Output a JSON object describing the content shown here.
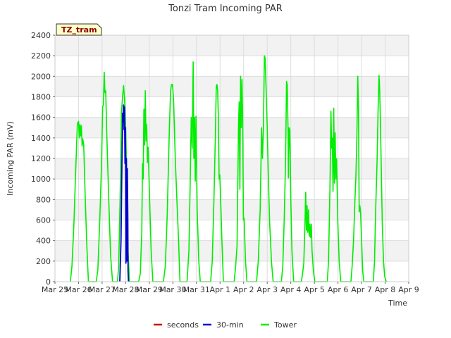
{
  "chart_data": {
    "type": "line",
    "title": "Tonzi Tram Incoming PAR",
    "xlabel": "Time",
    "ylabel": "Incoming PAR (mV)",
    "ylim": [
      0,
      2400
    ],
    "yticks": [
      0,
      200,
      400,
      600,
      800,
      1000,
      1200,
      1400,
      1600,
      1800,
      2000,
      2200,
      2400
    ],
    "xlim": [
      0,
      15
    ],
    "xticks": [
      0,
      1,
      2,
      3,
      4,
      5,
      6,
      7,
      8,
      9,
      10,
      11,
      12,
      13,
      14,
      15
    ],
    "xtick_labels": [
      "Mar 25",
      "Mar 26",
      "Mar 27",
      "Mar 28",
      "Mar 29",
      "Mar 30",
      "Mar 31",
      "Apr 1",
      "Apr 2",
      "Apr 3",
      "Apr 4",
      "Apr 5",
      "Apr 6",
      "Apr 7",
      "Apr 8",
      "Apr 9"
    ],
    "grid": true,
    "tag": "TZ_tram",
    "legend_position": "bottom",
    "series": [
      {
        "name": "seconds",
        "color": "#cc0000",
        "points": []
      },
      {
        "name": "30-min",
        "color": "#0000cc",
        "points": [
          [
            2.75,
            0
          ],
          [
            2.8,
            400
          ],
          [
            2.84,
            1150
          ],
          [
            2.87,
            1640
          ],
          [
            2.89,
            1560
          ],
          [
            2.91,
            1720
          ],
          [
            2.93,
            1480
          ],
          [
            2.95,
            1700
          ],
          [
            2.97,
            1150
          ],
          [
            2.99,
            1500
          ],
          [
            3.01,
            180
          ],
          [
            3.03,
            1200
          ],
          [
            3.05,
            200
          ],
          [
            3.07,
            1100
          ],
          [
            3.09,
            600
          ],
          [
            3.1,
            100
          ],
          [
            3.12,
            0
          ]
        ]
      },
      {
        "name": "Tower",
        "color": "#00ee00",
        "points": [
          [
            0.65,
            0
          ],
          [
            0.72,
            150
          ],
          [
            0.8,
            550
          ],
          [
            0.88,
            1100
          ],
          [
            0.95,
            1540
          ],
          [
            1.0,
            1560
          ],
          [
            1.03,
            1400
          ],
          [
            1.06,
            1530
          ],
          [
            1.09,
            1420
          ],
          [
            1.12,
            1520
          ],
          [
            1.15,
            1320
          ],
          [
            1.18,
            1390
          ],
          [
            1.22,
            1330
          ],
          [
            1.28,
            850
          ],
          [
            1.35,
            350
          ],
          [
            1.42,
            0
          ],
          [
            1.75,
            0
          ],
          [
            1.82,
            120
          ],
          [
            1.9,
            600
          ],
          [
            1.98,
            1200
          ],
          [
            2.02,
            1700
          ],
          [
            2.05,
            1720
          ],
          [
            2.09,
            2040
          ],
          [
            2.12,
            1840
          ],
          [
            2.15,
            1860
          ],
          [
            2.2,
            1420
          ],
          [
            2.28,
            800
          ],
          [
            2.36,
            250
          ],
          [
            2.44,
            0
          ],
          [
            2.65,
            0
          ],
          [
            2.7,
            150
          ],
          [
            2.76,
            800
          ],
          [
            2.82,
            1650
          ],
          [
            2.87,
            1810
          ],
          [
            2.91,
            1910
          ],
          [
            2.95,
            1780
          ],
          [
            3.0,
            1500
          ],
          [
            3.05,
            900
          ],
          [
            3.1,
            300
          ],
          [
            3.16,
            0
          ],
          [
            3.55,
            0
          ],
          [
            3.62,
            80
          ],
          [
            3.68,
            480
          ],
          [
            3.71,
            1150
          ],
          [
            3.74,
            1000
          ],
          [
            3.77,
            1680
          ],
          [
            3.8,
            1330
          ],
          [
            3.83,
            1860
          ],
          [
            3.86,
            1370
          ],
          [
            3.89,
            1530
          ],
          [
            3.92,
            1160
          ],
          [
            3.95,
            1310
          ],
          [
            4.0,
            900
          ],
          [
            4.08,
            300
          ],
          [
            4.15,
            0
          ],
          [
            4.6,
            0
          ],
          [
            4.68,
            150
          ],
          [
            4.76,
            650
          ],
          [
            4.84,
            1400
          ],
          [
            4.9,
            1850
          ],
          [
            4.94,
            1920
          ],
          [
            4.98,
            1920
          ],
          [
            5.03,
            1780
          ],
          [
            5.1,
            1200
          ],
          [
            5.17,
            800
          ],
          [
            5.24,
            400
          ],
          [
            5.3,
            0
          ],
          [
            5.6,
            0
          ],
          [
            5.68,
            300
          ],
          [
            5.74,
            1050
          ],
          [
            5.78,
            1600
          ],
          [
            5.82,
            1300
          ],
          [
            5.86,
            2140
          ],
          [
            5.89,
            1200
          ],
          [
            5.92,
            1600
          ],
          [
            5.95,
            980
          ],
          [
            5.98,
            1610
          ],
          [
            6.03,
            700
          ],
          [
            6.1,
            200
          ],
          [
            6.16,
            0
          ],
          [
            6.6,
            0
          ],
          [
            6.67,
            200
          ],
          [
            6.74,
            800
          ],
          [
            6.8,
            1410
          ],
          [
            6.84,
            1900
          ],
          [
            6.87,
            1920
          ],
          [
            6.9,
            1860
          ],
          [
            6.93,
            1580
          ],
          [
            6.96,
            1000
          ],
          [
            6.99,
            1040
          ],
          [
            7.02,
            850
          ],
          [
            7.08,
            400
          ],
          [
            7.14,
            0
          ],
          [
            7.6,
            0
          ],
          [
            7.66,
            150
          ],
          [
            7.72,
            350
          ],
          [
            7.78,
            1490
          ],
          [
            7.81,
            1750
          ],
          [
            7.84,
            900
          ],
          [
            7.87,
            2000
          ],
          [
            7.9,
            1500
          ],
          [
            7.93,
            1970
          ],
          [
            7.96,
            1580
          ],
          [
            7.99,
            600
          ],
          [
            8.02,
            620
          ],
          [
            8.08,
            200
          ],
          [
            8.14,
            0
          ],
          [
            8.55,
            0
          ],
          [
            8.62,
            200
          ],
          [
            8.7,
            700
          ],
          [
            8.76,
            1500
          ],
          [
            8.8,
            1200
          ],
          [
            8.84,
            1500
          ],
          [
            8.88,
            2200
          ],
          [
            8.91,
            2180
          ],
          [
            8.95,
            1900
          ],
          [
            9.0,
            1500
          ],
          [
            9.05,
            1000
          ],
          [
            9.1,
            600
          ],
          [
            9.18,
            200
          ],
          [
            9.25,
            0
          ],
          [
            9.6,
            0
          ],
          [
            9.66,
            150
          ],
          [
            9.72,
            600
          ],
          [
            9.78,
            1200
          ],
          [
            9.82,
            1950
          ],
          [
            9.85,
            1920
          ],
          [
            9.88,
            1500
          ],
          [
            9.9,
            1010
          ],
          [
            9.93,
            1500
          ],
          [
            9.96,
            1480
          ],
          [
            10.0,
            800
          ],
          [
            10.05,
            300
          ],
          [
            10.12,
            0
          ],
          [
            10.45,
            0
          ],
          [
            10.5,
            80
          ],
          [
            10.55,
            180
          ],
          [
            10.6,
            550
          ],
          [
            10.63,
            870
          ],
          [
            10.66,
            500
          ],
          [
            10.69,
            740
          ],
          [
            10.72,
            480
          ],
          [
            10.75,
            700
          ],
          [
            10.78,
            440
          ],
          [
            10.81,
            560
          ],
          [
            10.84,
            430
          ],
          [
            10.87,
            560
          ],
          [
            10.9,
            300
          ],
          [
            10.96,
            100
          ],
          [
            11.02,
            0
          ],
          [
            11.55,
            0
          ],
          [
            11.6,
            200
          ],
          [
            11.66,
            900
          ],
          [
            11.7,
            1660
          ],
          [
            11.73,
            1300
          ],
          [
            11.76,
            1400
          ],
          [
            11.79,
            880
          ],
          [
            11.82,
            1690
          ],
          [
            11.85,
            960
          ],
          [
            11.88,
            1450
          ],
          [
            11.91,
            1000
          ],
          [
            11.94,
            1200
          ],
          [
            11.99,
            600
          ],
          [
            12.05,
            200
          ],
          [
            12.12,
            0
          ],
          [
            12.55,
            0
          ],
          [
            12.6,
            150
          ],
          [
            12.66,
            400
          ],
          [
            12.72,
            800
          ],
          [
            12.76,
            1020
          ],
          [
            12.8,
            1390
          ],
          [
            12.84,
            2000
          ],
          [
            12.87,
            1700
          ],
          [
            12.9,
            680
          ],
          [
            12.93,
            740
          ],
          [
            12.96,
            670
          ],
          [
            13.0,
            400
          ],
          [
            13.05,
            100
          ],
          [
            13.1,
            0
          ],
          [
            13.5,
            0
          ],
          [
            13.55,
            200
          ],
          [
            13.6,
            700
          ],
          [
            13.66,
            1200
          ],
          [
            13.7,
            1660
          ],
          [
            13.74,
            2010
          ],
          [
            13.77,
            1870
          ],
          [
            13.8,
            1560
          ],
          [
            13.84,
            1050
          ],
          [
            13.88,
            560
          ],
          [
            13.93,
            200
          ],
          [
            13.98,
            50
          ],
          [
            14.05,
            0
          ]
        ]
      }
    ]
  }
}
